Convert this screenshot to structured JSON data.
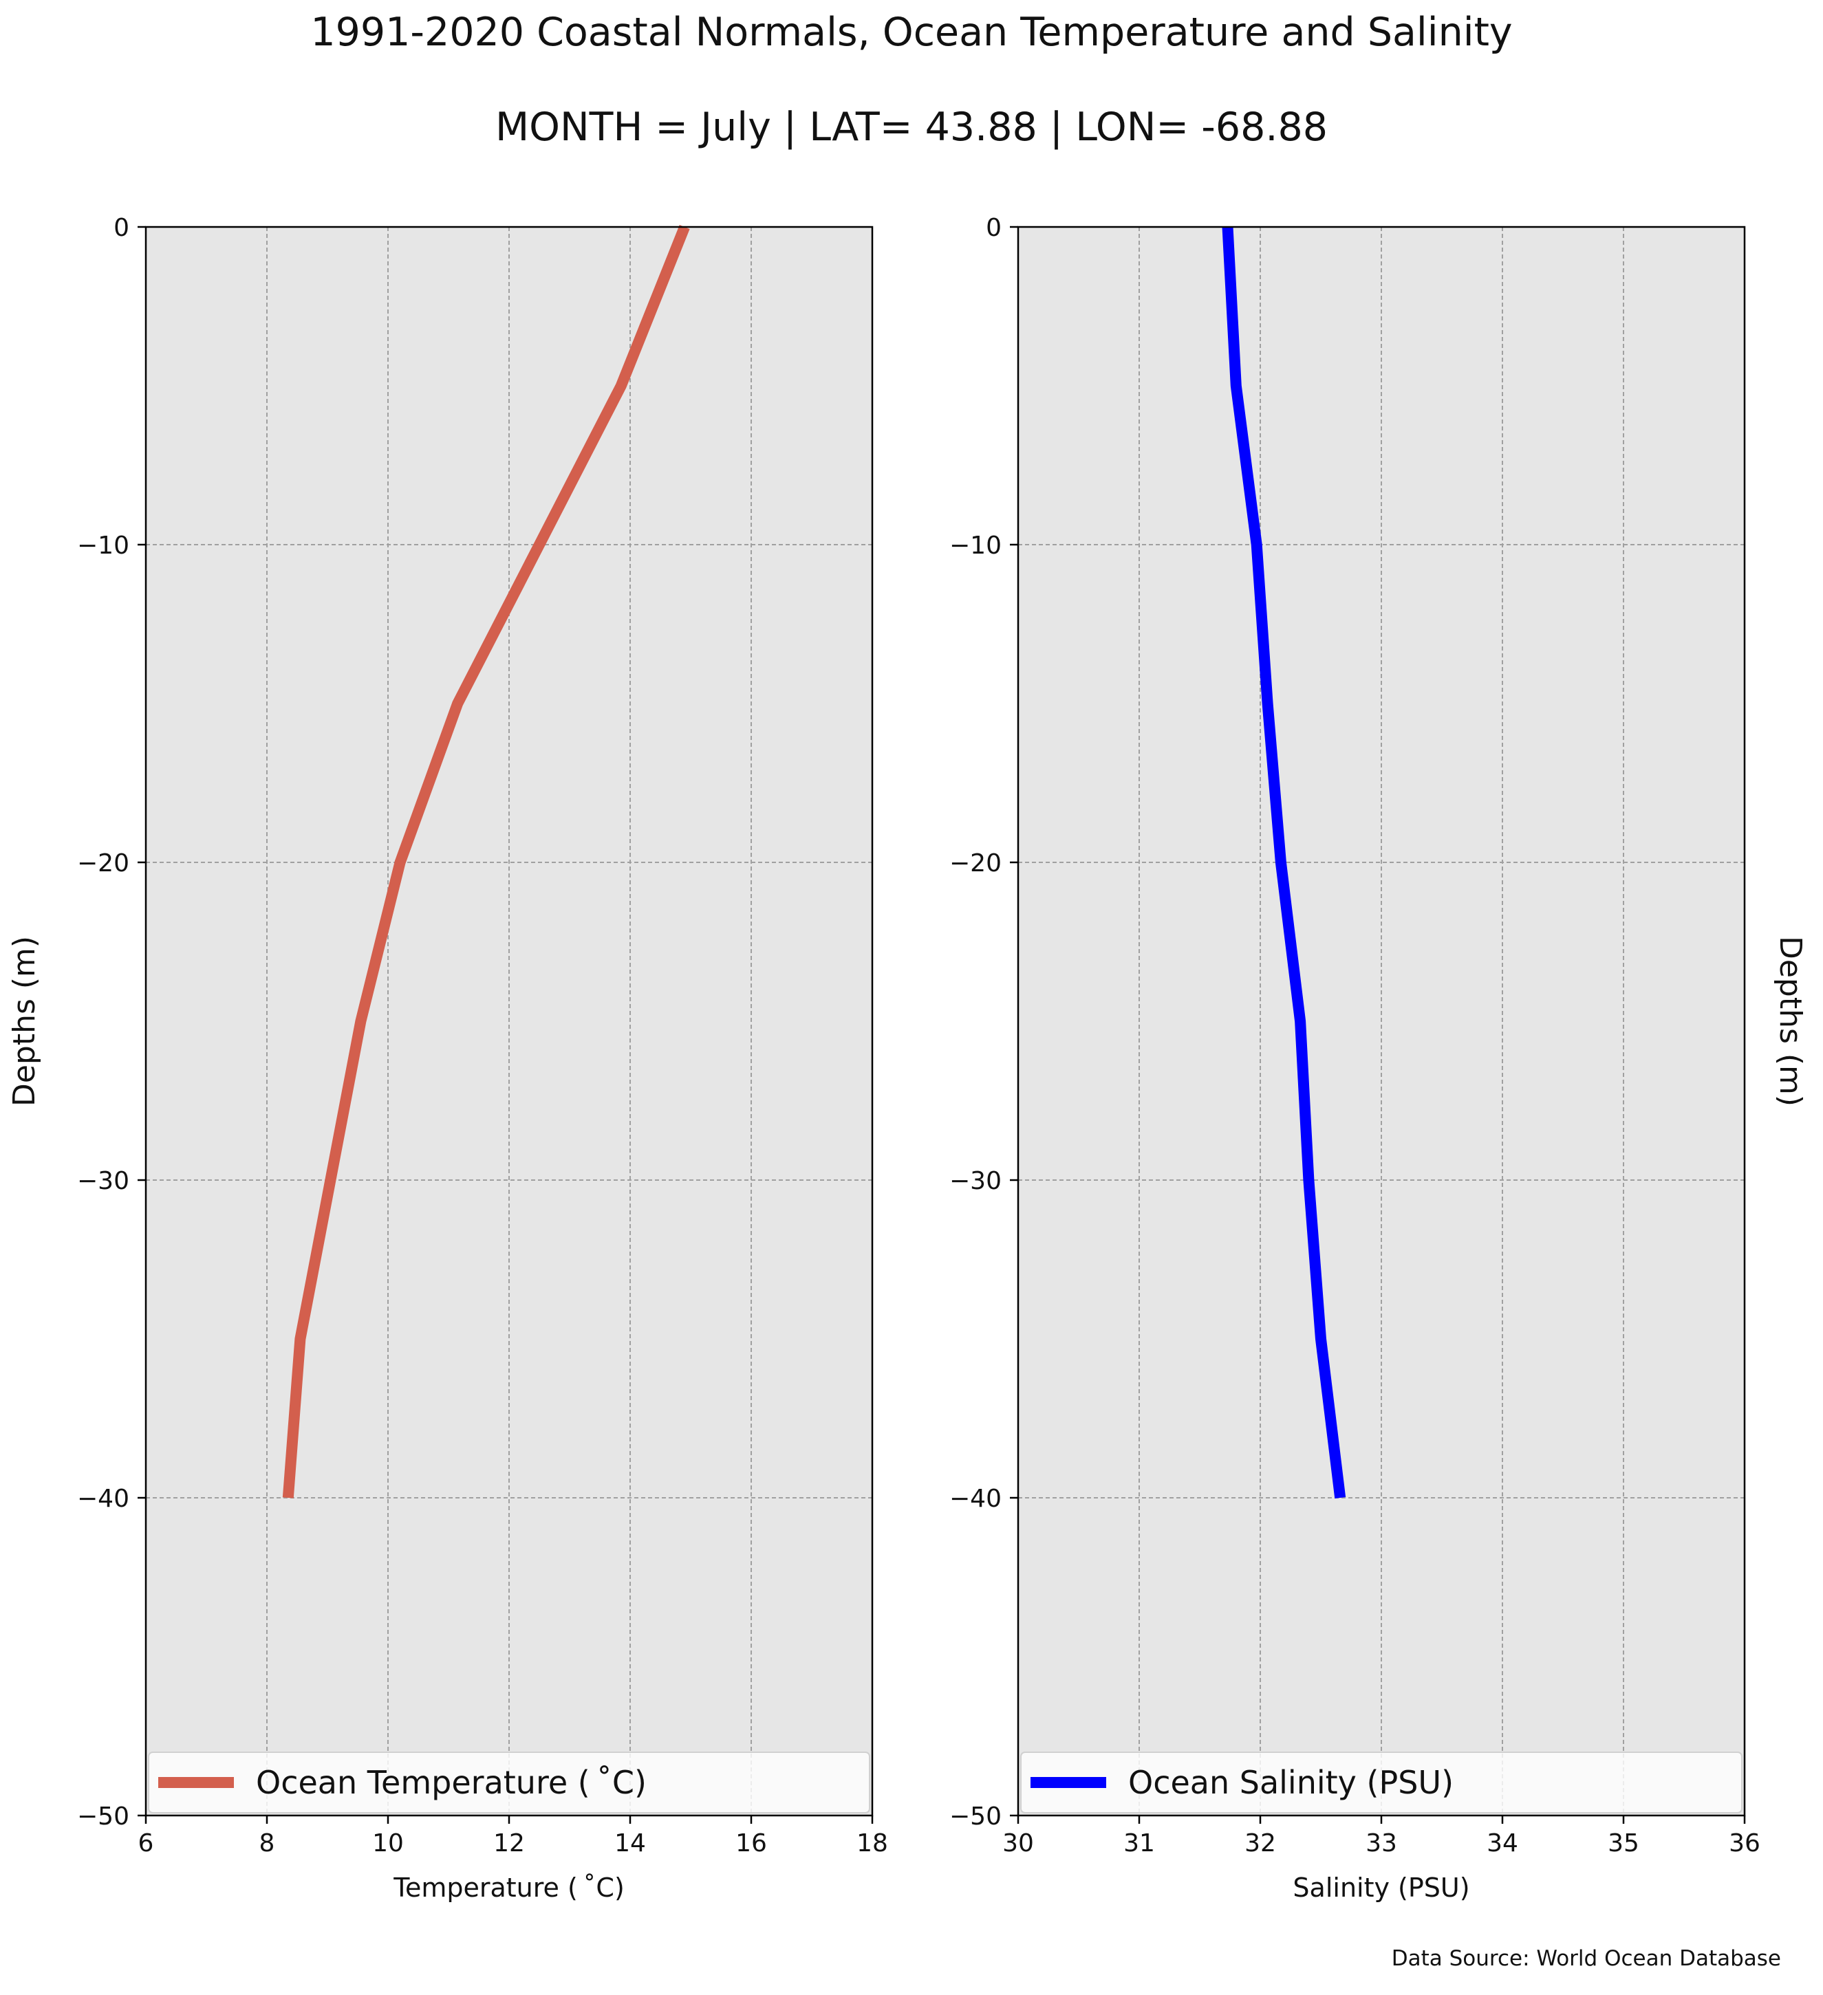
{
  "title": "1991-2020 Coastal Normals, Ocean Temperature and Salinity",
  "subtitle": "MONTH = July | LAT= 43.88 | LON= -68.88",
  "source": "Data Source: World Ocean Database",
  "chart_data": [
    {
      "type": "line",
      "xlabel": "Temperature ( ˚C)",
      "ylabel": "Depths (m)",
      "xlim": [
        6,
        18
      ],
      "ylim": [
        -50,
        0
      ],
      "xticks": [
        6,
        8,
        10,
        12,
        14,
        16,
        18
      ],
      "xtick_labels": [
        "6",
        "8",
        "10",
        "12",
        "14",
        "16",
        "18"
      ],
      "yticks": [
        0,
        -10,
        -20,
        -30,
        -40,
        -50
      ],
      "ytick_labels": [
        "0",
        "−10",
        "−20",
        "−30",
        "−40",
        "−50"
      ],
      "grid": true,
      "legend_position": "bottom",
      "color": "#d35f4d",
      "series": [
        {
          "name": "Ocean Temperature ( ˚C)",
          "depth": [
            0,
            -5,
            -10,
            -15,
            -20,
            -25,
            -30,
            -35,
            -40
          ],
          "values": [
            14.9,
            13.85,
            12.5,
            11.15,
            10.2,
            9.55,
            9.05,
            8.55,
            8.35
          ]
        }
      ]
    },
    {
      "type": "line",
      "xlabel": "Salinity (PSU)",
      "ylabel": "Depths (m)",
      "xlim": [
        30,
        36
      ],
      "ylim": [
        -50,
        0
      ],
      "xticks": [
        30,
        31,
        32,
        33,
        34,
        35,
        36
      ],
      "xtick_labels": [
        "30",
        "31",
        "32",
        "33",
        "34",
        "35",
        "36"
      ],
      "yticks": [
        0,
        -10,
        -20,
        -30,
        -40,
        -50
      ],
      "ytick_labels": [
        "0",
        "−10",
        "−20",
        "−30",
        "−40",
        "−50"
      ],
      "grid": true,
      "legend_position": "bottom",
      "color": "#0000ff",
      "series": [
        {
          "name": "Ocean Salinity (PSU)",
          "depth": [
            0,
            -5,
            -10,
            -15,
            -20,
            -25,
            -30,
            -35,
            -40
          ],
          "values": [
            31.73,
            31.8,
            31.97,
            32.06,
            32.17,
            32.33,
            32.4,
            32.5,
            32.66
          ]
        }
      ]
    }
  ]
}
